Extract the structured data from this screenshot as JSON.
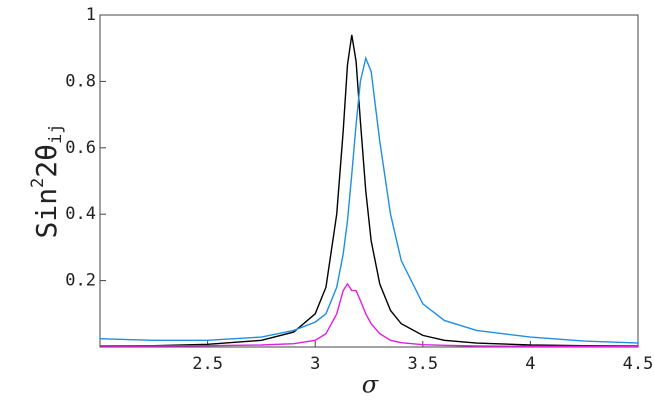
{
  "chart_data": {
    "type": "line",
    "xlabel": "σ",
    "ylabel": {
      "text": "Sin",
      "superscript": "2",
      "body": "2θ",
      "subscript": "ij"
    },
    "x": [
      2,
      2.25,
      2.5,
      2.75,
      2.9,
      3,
      3.05,
      3.1,
      3.13,
      3.15,
      3.17,
      3.19,
      3.21,
      3.235,
      3.26,
      3.3,
      3.35,
      3.4,
      3.5,
      3.6,
      3.75,
      4,
      4.25,
      4.5
    ],
    "series": [
      {
        "color": "#000000",
        "values": [
          0.003,
          0.004,
          0.008,
          0.02,
          0.045,
          0.1,
          0.18,
          0.4,
          0.65,
          0.85,
          0.94,
          0.86,
          0.68,
          0.47,
          0.32,
          0.19,
          0.11,
          0.07,
          0.035,
          0.02,
          0.012,
          0.006,
          0.004,
          0.003
        ]
      },
      {
        "color": "#1f8fe0",
        "values": [
          0.025,
          0.02,
          0.02,
          0.03,
          0.05,
          0.075,
          0.1,
          0.18,
          0.28,
          0.38,
          0.52,
          0.67,
          0.8,
          0.87,
          0.83,
          0.62,
          0.4,
          0.26,
          0.13,
          0.08,
          0.05,
          0.03,
          0.018,
          0.012
        ]
      },
      {
        "color": "#e020e0",
        "values": [
          0.003,
          0.003,
          0.004,
          0.006,
          0.01,
          0.02,
          0.04,
          0.1,
          0.17,
          0.19,
          0.17,
          0.17,
          0.14,
          0.1,
          0.07,
          0.04,
          0.02,
          0.013,
          0.007,
          0.005,
          0.003,
          0.002,
          0.002,
          0.002
        ]
      }
    ],
    "xlim": [
      2,
      4.5
    ],
    "ylim": [
      0,
      1
    ],
    "xticks": [
      2.5,
      3,
      3.5,
      4,
      4.5
    ],
    "yticks": [
      0.2,
      0.4,
      0.6,
      0.8,
      1
    ]
  }
}
